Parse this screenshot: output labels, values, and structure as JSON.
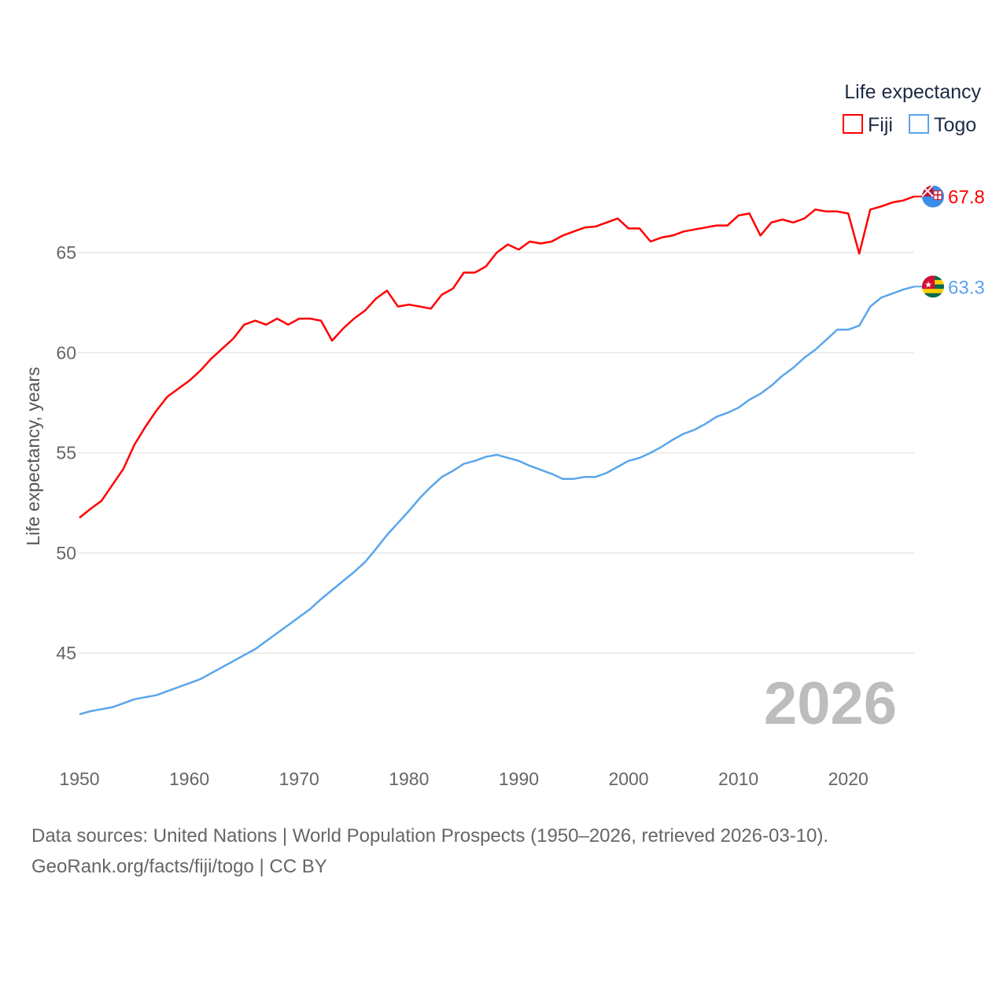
{
  "chart_data": {
    "type": "line",
    "title": "",
    "xlabel": "",
    "ylabel": "Life expectancy, years",
    "xlim": [
      1950,
      2026
    ],
    "ylim": [
      40.8,
      69.5
    ],
    "grid": true,
    "legend_position": "top-right",
    "legend_title": "Life expectancy",
    "x_ticks": [
      1950,
      1960,
      1970,
      1980,
      1990,
      2000,
      2010,
      2020
    ],
    "y_ticks": [
      45,
      50,
      55,
      60,
      65
    ],
    "current_year_label": "2026",
    "x": [
      1950,
      1951,
      1952,
      1953,
      1954,
      1955,
      1956,
      1957,
      1958,
      1959,
      1960,
      1961,
      1962,
      1963,
      1964,
      1965,
      1966,
      1967,
      1968,
      1969,
      1970,
      1971,
      1972,
      1973,
      1974,
      1975,
      1976,
      1977,
      1978,
      1979,
      1980,
      1981,
      1982,
      1983,
      1984,
      1985,
      1986,
      1987,
      1988,
      1989,
      1990,
      1991,
      1992,
      1993,
      1994,
      1995,
      1996,
      1997,
      1998,
      1999,
      2000,
      2001,
      2002,
      2003,
      2004,
      2005,
      2006,
      2007,
      2008,
      2009,
      2010,
      2011,
      2012,
      2013,
      2014,
      2015,
      2016,
      2017,
      2018,
      2019,
      2020,
      2021,
      2022,
      2023,
      2024,
      2025,
      2026
    ],
    "series": [
      {
        "name": "Fiji",
        "color": "#ff0000",
        "end_label": "67.8",
        "values": [
          51.76,
          52.2,
          52.6,
          53.4,
          54.2,
          55.4,
          56.3,
          57.1,
          57.8,
          58.2,
          58.6,
          59.1,
          59.7,
          60.2,
          60.7,
          61.4,
          61.6,
          61.4,
          61.7,
          61.4,
          61.7,
          61.7,
          61.6,
          60.6,
          61.2,
          61.7,
          62.1,
          62.7,
          63.1,
          62.3,
          62.4,
          62.3,
          62.2,
          62.9,
          63.2,
          64.0,
          64.0,
          64.3,
          65.0,
          65.4,
          65.15,
          65.55,
          65.45,
          65.55,
          65.85,
          66.05,
          66.25,
          66.3,
          66.5,
          66.7,
          66.2,
          66.2,
          65.55,
          65.75,
          65.85,
          66.05,
          66.15,
          66.25,
          66.35,
          66.35,
          66.85,
          66.95,
          65.85,
          66.5,
          66.65,
          66.5,
          66.7,
          67.15,
          67.05,
          67.05,
          66.95,
          64.95,
          67.15,
          67.3,
          67.5,
          67.6,
          67.8
        ]
      },
      {
        "name": "Togo",
        "color": "#5aa5ec",
        "end_label": "63.3",
        "values": [
          41.95,
          42.1,
          42.2,
          42.3,
          42.5,
          42.7,
          42.8,
          42.9,
          43.1,
          43.3,
          43.5,
          43.7,
          44.0,
          44.3,
          44.6,
          44.9,
          45.2,
          45.6,
          46.0,
          46.4,
          46.8,
          47.2,
          47.7,
          48.15,
          48.6,
          49.05,
          49.55,
          50.2,
          50.9,
          51.5,
          52.1,
          52.75,
          53.3,
          53.8,
          54.1,
          54.45,
          54.6,
          54.8,
          54.9,
          54.75,
          54.6,
          54.35,
          54.15,
          53.95,
          53.7,
          53.7,
          53.8,
          53.8,
          54.0,
          54.3,
          54.6,
          54.75,
          55.0,
          55.3,
          55.65,
          55.95,
          56.15,
          56.45,
          56.8,
          57.0,
          57.25,
          57.65,
          57.95,
          58.35,
          58.85,
          59.25,
          59.75,
          60.15,
          60.65,
          61.15,
          61.15,
          61.35,
          62.3,
          62.75,
          62.95,
          63.15,
          63.3
        ]
      }
    ]
  },
  "source": {
    "line1": "Data sources: United Nations | World Population Prospects (1950–2026, retrieved 2026-03-10).",
    "line2": "GeoRank.org/facts/fiji/togo | CC BY"
  }
}
